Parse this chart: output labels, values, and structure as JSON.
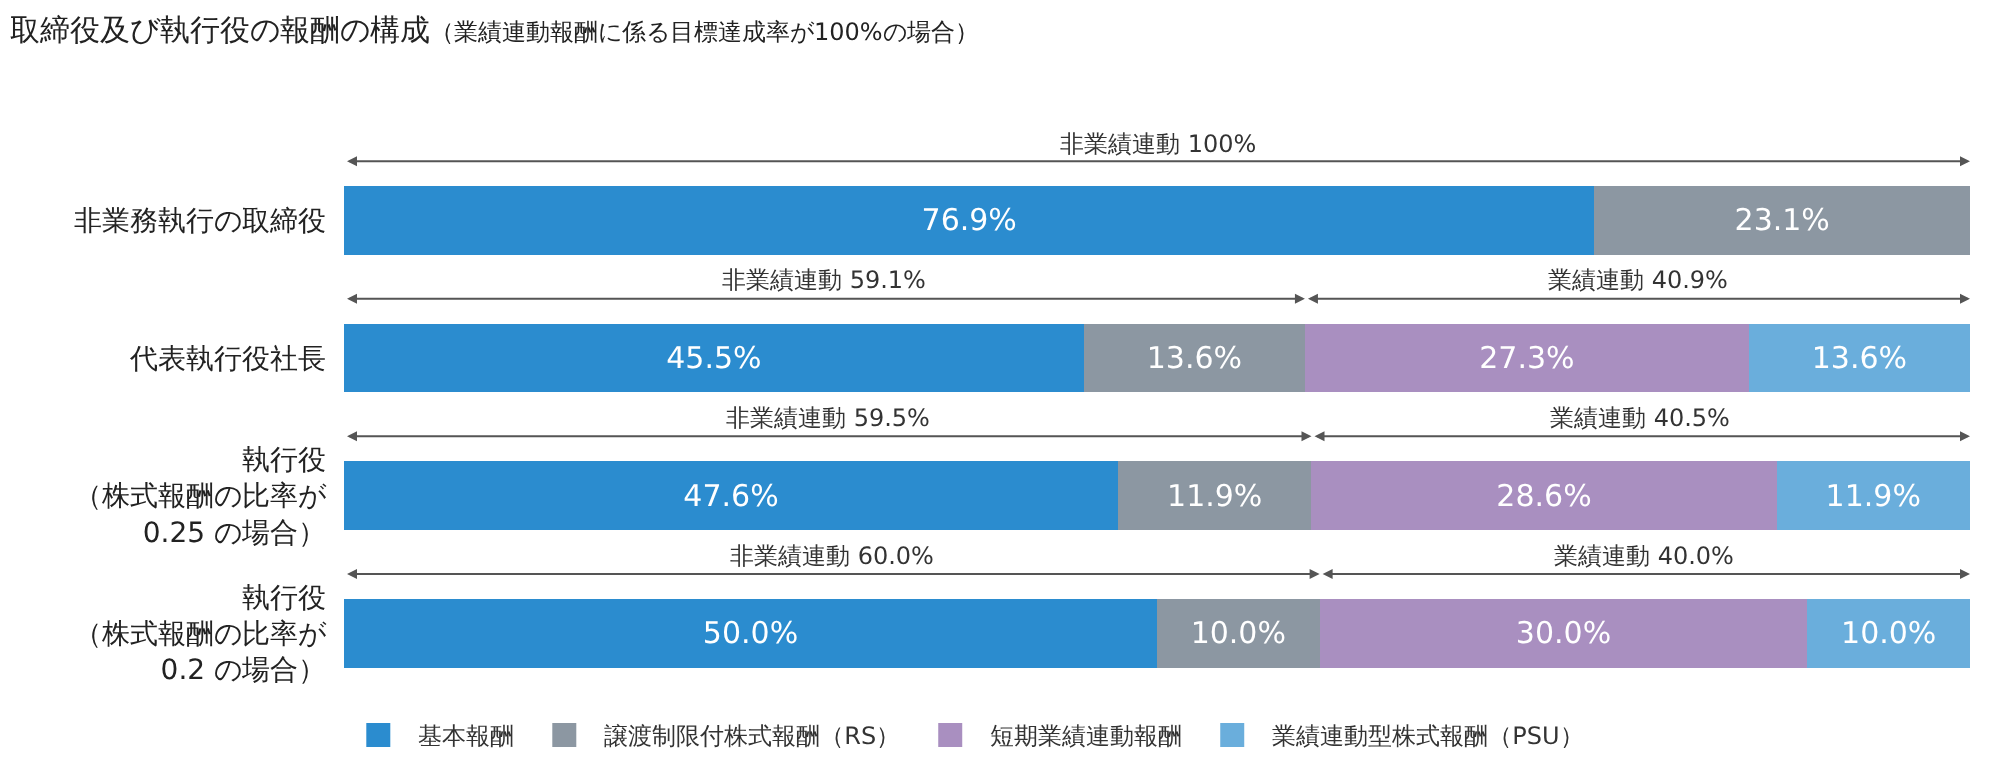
{
  "chart_data": {
    "type": "bar",
    "orientation": "horizontal",
    "stacked": true,
    "title": "取締役及び執行役の報酬の構成",
    "subtitle": "（業績連動報酬に係る目標達成率が100%の場合）",
    "categories": [
      "非業務執行の取締役",
      "代表執行役社長",
      "執行役（株式報酬の比率が0.25 の場合）",
      "執行役（株式報酬の比率が0.2 の場合）"
    ],
    "series": [
      {
        "name": "基本報酬",
        "color": "#2b8ccf",
        "values": [
          76.9,
          45.5,
          47.6,
          50.0
        ],
        "value_labels": [
          "76.9%",
          "45.5%",
          "47.6%",
          "50.0%"
        ]
      },
      {
        "name": "譲渡制限付株式報酬（RS）",
        "color": "#8c97a2",
        "values": [
          23.1,
          13.6,
          11.9,
          10.0
        ],
        "value_labels": [
          "23.1%",
          "13.6%",
          "11.9%",
          "10.0%"
        ]
      },
      {
        "name": "短期業績連動報酬",
        "color": "#a98fc0",
        "values": [
          null,
          27.3,
          28.6,
          30.0
        ],
        "value_labels": [
          null,
          "27.3%",
          "28.6%",
          "30.0%"
        ]
      },
      {
        "name": "業績連動型株式報酬（PSU）",
        "color": "#6aaedc",
        "values": [
          null,
          13.6,
          11.9,
          10.0
        ],
        "value_labels": [
          null,
          "13.6%",
          "11.9%",
          "10.0%"
        ]
      }
    ],
    "annotations": [
      "非業績連動 100%",
      "非業績連動 59.1%",
      "業績連動 40.9%",
      "非業績連動 59.5%",
      "業績連動 40.5%",
      "非業績連動 60.0%",
      "業績連動 40.0%"
    ],
    "tick_labels": false,
    "legend": "bottom"
  }
}
